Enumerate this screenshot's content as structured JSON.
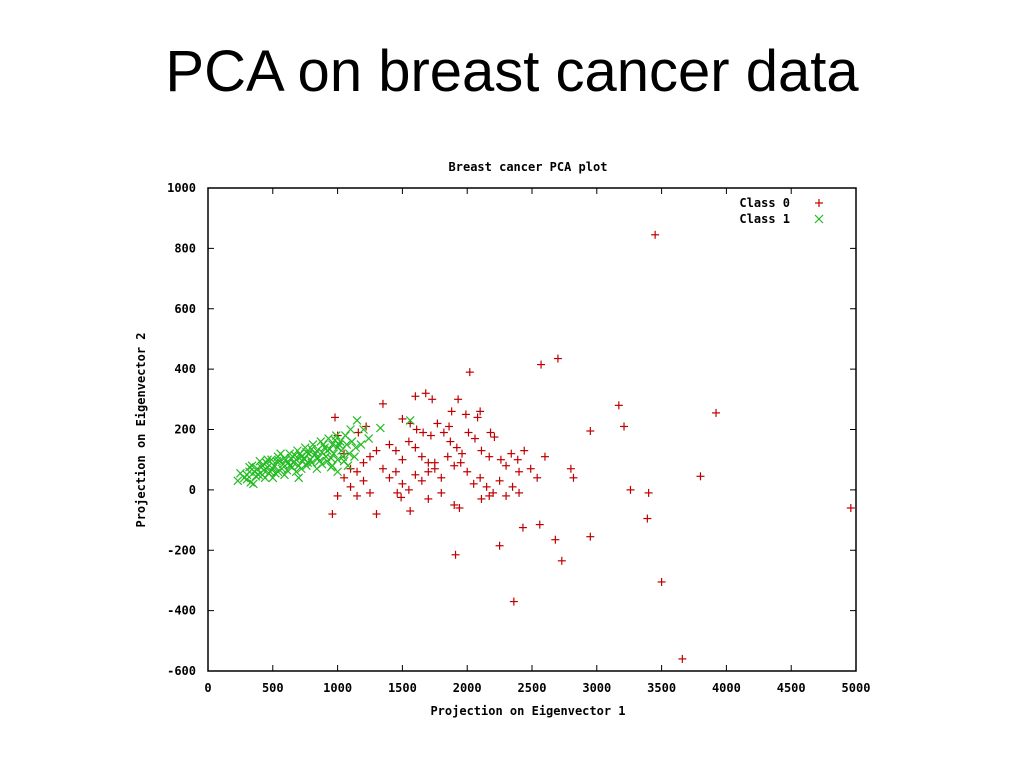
{
  "slide": {
    "title": "PCA on breast cancer data"
  },
  "chart_data": {
    "type": "scatter",
    "title": "Breast cancer PCA plot",
    "xlabel": "Projection on Eigenvector 1",
    "ylabel": "Projection on Eigenvector 2",
    "xlim": [
      0,
      5000
    ],
    "ylim": [
      -600,
      1000
    ],
    "x_ticks": [
      0,
      500,
      1000,
      1500,
      2000,
      2500,
      3000,
      3500,
      4000,
      4500,
      5000
    ],
    "y_ticks": [
      -600,
      -400,
      -200,
      0,
      200,
      400,
      600,
      800,
      1000
    ],
    "grid": false,
    "legend_position": "top-right",
    "series": [
      {
        "name": "Class 0",
        "marker": "+",
        "color": "#c00000",
        "points": [
          [
            3450,
            845
          ],
          [
            2570,
            415
          ],
          [
            2700,
            435
          ],
          [
            2020,
            390
          ],
          [
            3920,
            255
          ],
          [
            3170,
            280
          ],
          [
            3210,
            210
          ],
          [
            2950,
            195
          ],
          [
            2800,
            70
          ],
          [
            2820,
            40
          ],
          [
            3800,
            45
          ],
          [
            3260,
            0
          ],
          [
            3400,
            -10
          ],
          [
            3390,
            -95
          ],
          [
            4960,
            -60
          ],
          [
            2560,
            -115
          ],
          [
            2430,
            -125
          ],
          [
            2950,
            -155
          ],
          [
            2680,
            -165
          ],
          [
            2250,
            -185
          ],
          [
            2730,
            -235
          ],
          [
            1910,
            -215
          ],
          [
            3500,
            -305
          ],
          [
            2360,
            -370
          ],
          [
            3660,
            -560
          ],
          [
            1680,
            320
          ],
          [
            1730,
            300
          ],
          [
            1880,
            260
          ],
          [
            1990,
            250
          ],
          [
            1930,
            300
          ],
          [
            2100,
            260
          ],
          [
            2080,
            240
          ],
          [
            1350,
            285
          ],
          [
            1500,
            235
          ],
          [
            1560,
            220
          ],
          [
            1610,
            200
          ],
          [
            1660,
            190
          ],
          [
            1720,
            180
          ],
          [
            1770,
            220
          ],
          [
            1820,
            190
          ],
          [
            1870,
            160
          ],
          [
            1920,
            140
          ],
          [
            1960,
            120
          ],
          [
            2010,
            190
          ],
          [
            2060,
            170
          ],
          [
            2110,
            130
          ],
          [
            2170,
            110
          ],
          [
            2210,
            175
          ],
          [
            2260,
            100
          ],
          [
            2300,
            80
          ],
          [
            2340,
            120
          ],
          [
            2390,
            100
          ],
          [
            2440,
            130
          ],
          [
            2490,
            70
          ],
          [
            2540,
            40
          ],
          [
            2600,
            110
          ],
          [
            1400,
            150
          ],
          [
            1450,
            130
          ],
          [
            1500,
            100
          ],
          [
            1550,
            160
          ],
          [
            1600,
            140
          ],
          [
            1650,
            110
          ],
          [
            1700,
            90
          ],
          [
            1750,
            70
          ],
          [
            1800,
            40
          ],
          [
            1850,
            110
          ],
          [
            1900,
            80
          ],
          [
            1950,
            90
          ],
          [
            2000,
            60
          ],
          [
            2050,
            20
          ],
          [
            2100,
            40
          ],
          [
            2150,
            10
          ],
          [
            2200,
            -10
          ],
          [
            2250,
            30
          ],
          [
            2300,
            -20
          ],
          [
            2350,
            10
          ],
          [
            2400,
            60
          ],
          [
            1300,
            130
          ],
          [
            1250,
            110
          ],
          [
            1200,
            90
          ],
          [
            1350,
            70
          ],
          [
            1400,
            40
          ],
          [
            1450,
            60
          ],
          [
            1500,
            20
          ],
          [
            1550,
            0
          ],
          [
            1600,
            50
          ],
          [
            1650,
            30
          ],
          [
            1700,
            60
          ],
          [
            1750,
            90
          ],
          [
            1200,
            30
          ],
          [
            1150,
            -20
          ],
          [
            1100,
            10
          ],
          [
            1050,
            40
          ],
          [
            1000,
            -20
          ],
          [
            960,
            -80
          ],
          [
            1300,
            -80
          ],
          [
            1560,
            -70
          ],
          [
            1460,
            -10
          ],
          [
            1490,
            -25
          ],
          [
            1900,
            -50
          ],
          [
            1940,
            -60
          ],
          [
            2170,
            -20
          ],
          [
            2110,
            -30
          ],
          [
            2400,
            -10
          ],
          [
            1800,
            -10
          ],
          [
            1700,
            -30
          ],
          [
            1250,
            -10
          ],
          [
            1150,
            60
          ],
          [
            1100,
            70
          ],
          [
            1220,
            210
          ],
          [
            1160,
            190
          ],
          [
            1050,
            120
          ],
          [
            980,
            240
          ],
          [
            1000,
            180
          ],
          [
            1600,
            310
          ],
          [
            1860,
            210
          ],
          [
            2180,
            190
          ]
        ]
      },
      {
        "name": "Class 1",
        "marker": "x",
        "color": "#22bb22",
        "points": [
          [
            230,
            30
          ],
          [
            280,
            40
          ],
          [
            320,
            60
          ],
          [
            350,
            20
          ],
          [
            380,
            70
          ],
          [
            420,
            50
          ],
          [
            450,
            90
          ],
          [
            480,
            60
          ],
          [
            510,
            80
          ],
          [
            540,
            110
          ],
          [
            570,
            70
          ],
          [
            600,
            100
          ],
          [
            630,
            120
          ],
          [
            660,
            90
          ],
          [
            690,
            130
          ],
          [
            720,
            110
          ],
          [
            750,
            140
          ],
          [
            780,
            120
          ],
          [
            810,
            150
          ],
          [
            840,
            130
          ],
          [
            870,
            160
          ],
          [
            900,
            140
          ],
          [
            930,
            170
          ],
          [
            960,
            150
          ],
          [
            990,
            180
          ],
          [
            1020,
            160
          ],
          [
            1060,
            180
          ],
          [
            1100,
            200
          ],
          [
            1150,
            230
          ],
          [
            1200,
            200
          ],
          [
            300,
            50
          ],
          [
            340,
            80
          ],
          [
            370,
            45
          ],
          [
            400,
            95
          ],
          [
            430,
            65
          ],
          [
            460,
            75
          ],
          [
            490,
            100
          ],
          [
            520,
            55
          ],
          [
            550,
            95
          ],
          [
            580,
            85
          ],
          [
            610,
            65
          ],
          [
            640,
            105
          ],
          [
            670,
            115
          ],
          [
            700,
            80
          ],
          [
            730,
            95
          ],
          [
            760,
            125
          ],
          [
            790,
            100
          ],
          [
            820,
            115
          ],
          [
            850,
            105
          ],
          [
            880,
            125
          ],
          [
            910,
            110
          ],
          [
            940,
            135
          ],
          [
            970,
            120
          ],
          [
            1000,
            140
          ],
          [
            1030,
            130
          ],
          [
            1070,
            150
          ],
          [
            1110,
            160
          ],
          [
            1140,
            140
          ],
          [
            320,
            75
          ],
          [
            360,
            60
          ],
          [
            410,
            75
          ],
          [
            440,
            40
          ],
          [
            470,
            55
          ],
          [
            500,
            70
          ],
          [
            530,
            95
          ],
          [
            560,
            120
          ],
          [
            590,
            105
          ],
          [
            620,
            90
          ],
          [
            650,
            75
          ],
          [
            680,
            100
          ],
          [
            710,
            120
          ],
          [
            740,
            105
          ],
          [
            770,
            90
          ],
          [
            800,
            135
          ],
          [
            830,
            120
          ],
          [
            860,
            95
          ],
          [
            890,
            150
          ],
          [
            920,
            130
          ],
          [
            950,
            105
          ],
          [
            980,
            165
          ],
          [
            1010,
            150
          ],
          [
            1040,
            110
          ],
          [
            250,
            55
          ],
          [
            300,
            35
          ],
          [
            330,
            25
          ],
          [
            390,
            50
          ],
          [
            420,
            80
          ],
          [
            460,
            100
          ],
          [
            500,
            40
          ],
          [
            540,
            60
          ],
          [
            590,
            50
          ],
          [
            630,
            80
          ],
          [
            680,
            60
          ],
          [
            720,
            70
          ],
          [
            760,
            80
          ],
          [
            800,
            90
          ],
          [
            840,
            70
          ],
          [
            880,
            85
          ],
          [
            920,
            95
          ],
          [
            960,
            80
          ],
          [
            1000,
            100
          ],
          [
            1050,
            95
          ],
          [
            1090,
            120
          ],
          [
            1130,
            110
          ],
          [
            1180,
            150
          ],
          [
            1240,
            170
          ],
          [
            1330,
            205
          ],
          [
            1560,
            230
          ],
          [
            1080,
            80
          ],
          [
            1000,
            60
          ],
          [
            950,
            75
          ],
          [
            700,
            40
          ]
        ]
      }
    ]
  }
}
